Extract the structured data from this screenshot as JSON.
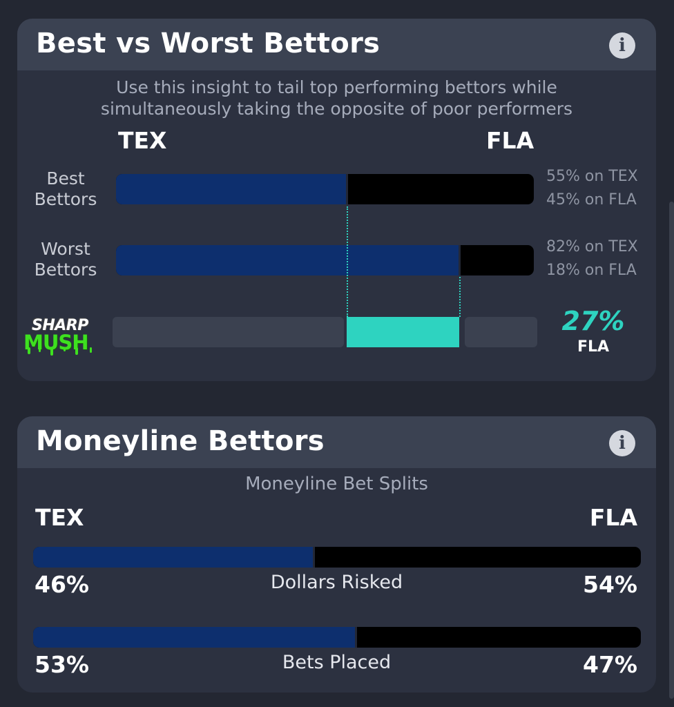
{
  "best_worst": {
    "title": "Best vs Worst Bettors",
    "info_icon": "info-icon",
    "subtitle_line1": "Use this insight to tail top performing bettors while",
    "subtitle_line2": "simultaneously taking the opposite of poor performers",
    "team_left": "TEX",
    "team_right": "FLA",
    "best_label_1": "Best",
    "best_label_2": "Bettors",
    "worst_label_1": "Worst",
    "worst_label_2": "Bettors",
    "best_pct_left": 55,
    "worst_pct_left": 82,
    "best_text_1": "55% on TEX",
    "best_text_2": "45% on FLA",
    "worst_text_1": "82% on TEX",
    "worst_text_2": "18% on FLA",
    "logo_line1": "SHARP",
    "logo_line2": "MUSH",
    "diff_pct": "27%",
    "diff_team": "FLA"
  },
  "moneyline": {
    "title": "Moneyline Bettors",
    "info_icon": "info-icon",
    "subtitle": "Moneyline Bet Splits",
    "team_left": "TEX",
    "team_right": "FLA",
    "dollars": {
      "label": "Dollars Risked",
      "left": "46%",
      "right": "54%",
      "left_value": 46
    },
    "bets": {
      "label": "Bets Placed",
      "left": "53%",
      "right": "47%",
      "left_value": 53
    }
  },
  "colors": {
    "tex": "#0d2f6e",
    "fla": "#000000",
    "accent": "#2ed3c0",
    "card": "#2c3140",
    "header": "#3b4252"
  }
}
